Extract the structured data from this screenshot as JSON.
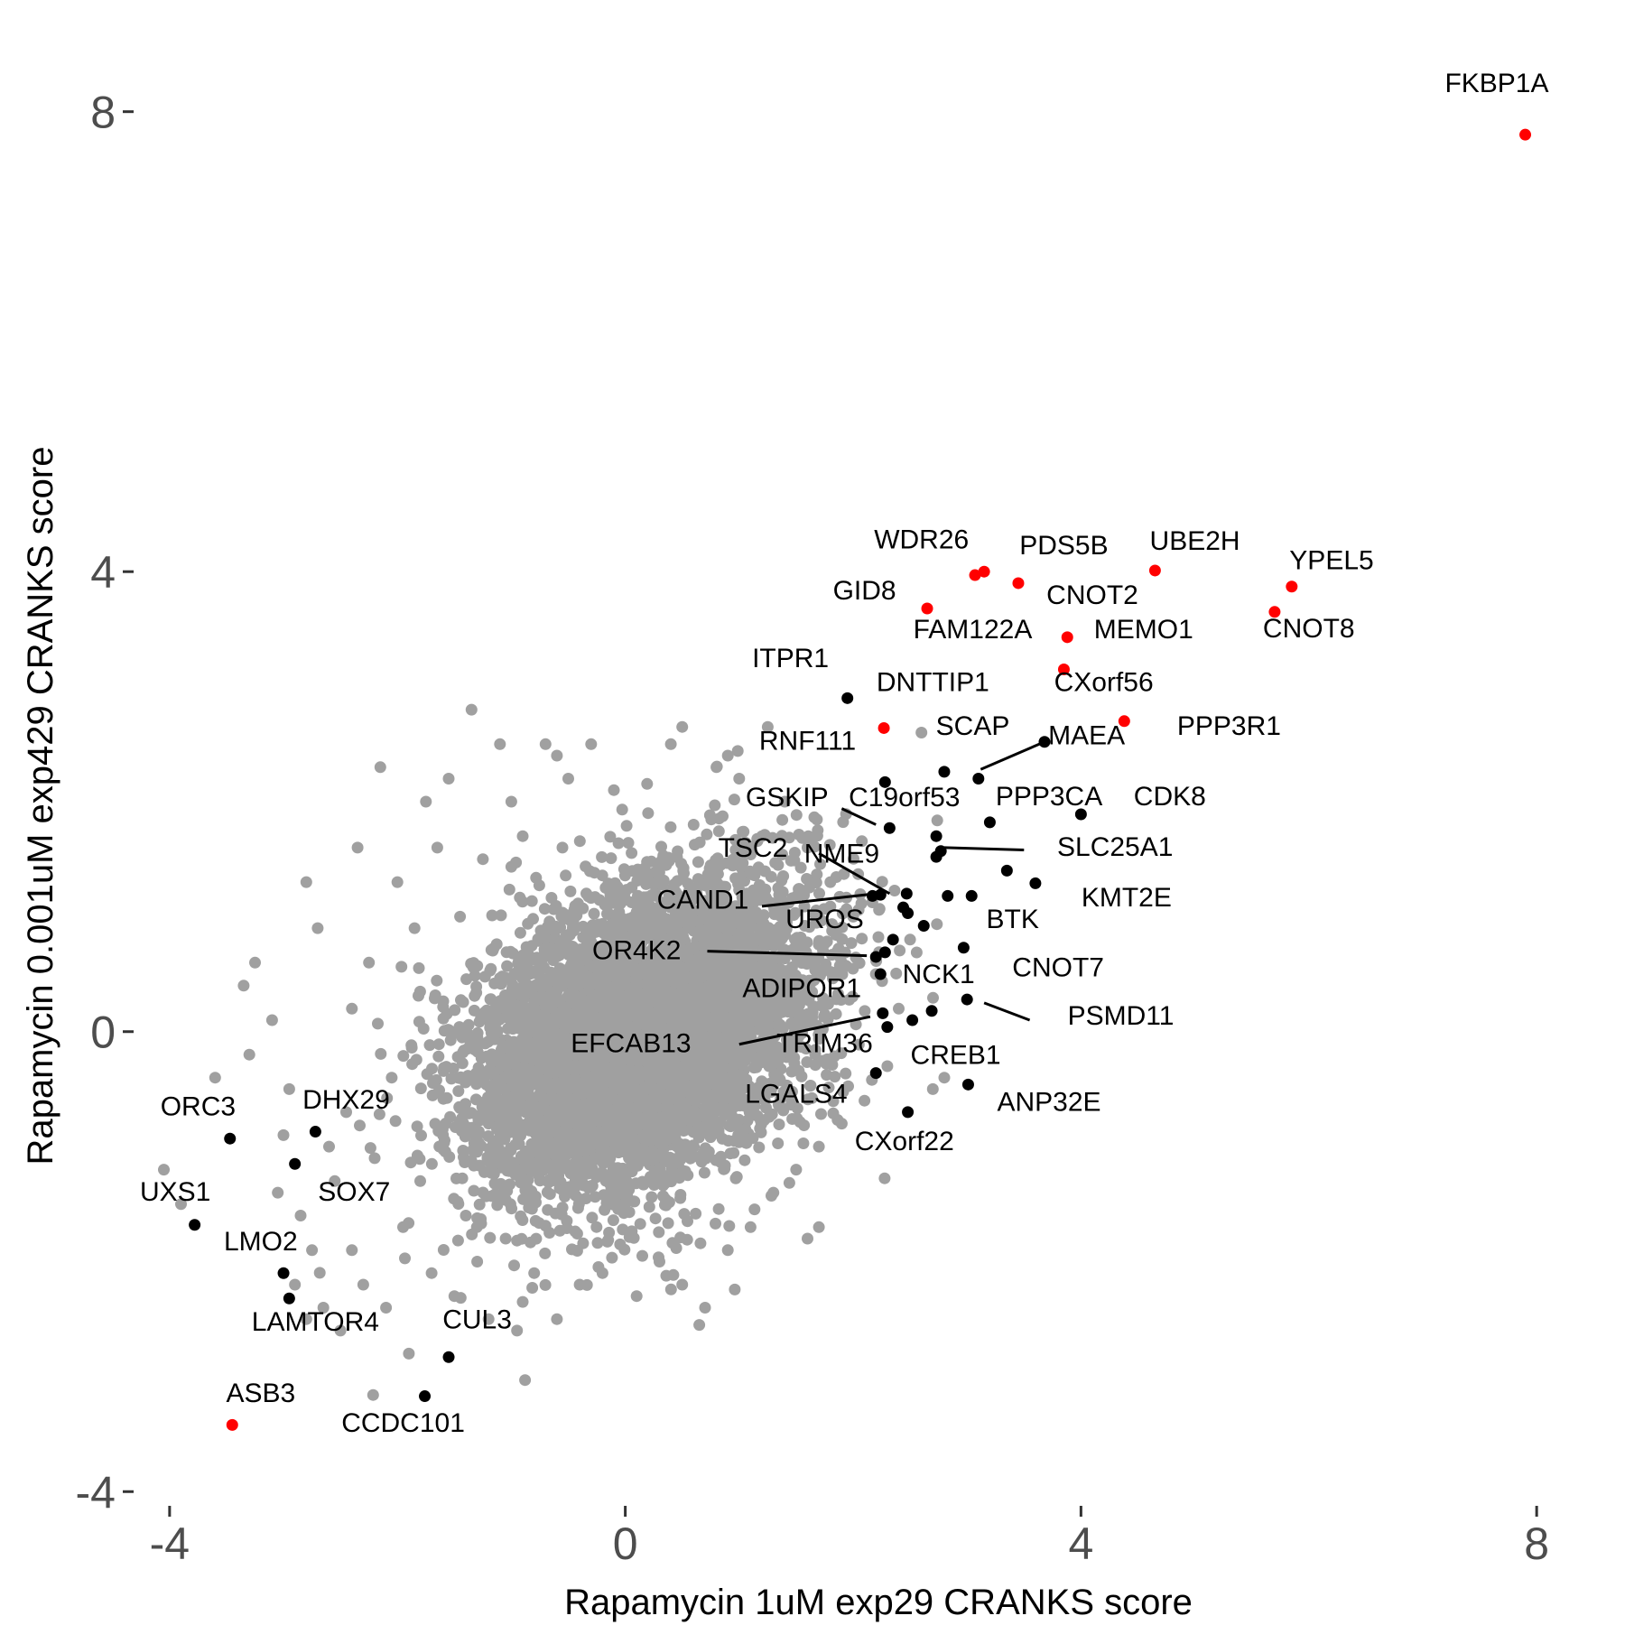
{
  "chart_data": {
    "type": "scatter",
    "title": "",
    "xlabel": "Rapamycin 1uM exp29 CRANKS score",
    "ylabel": "Rapamycin 0.001uM exp429 CRANKS score",
    "xlim": [
      -4.3,
      8.3
    ],
    "ylim": [
      -4.1,
      8.5
    ],
    "x_ticks": [
      -4,
      0,
      4,
      8
    ],
    "y_ticks": [
      -4,
      0,
      4,
      8
    ],
    "x_tick_labels": [
      "-4",
      "0",
      "4",
      "8"
    ],
    "y_tick_labels": [
      "-4",
      "0",
      "4",
      "8"
    ],
    "grid": false,
    "legend": "none",
    "colors": {
      "background": "#ffffff",
      "red": "#ff0000",
      "black": "#000000",
      "gray": "#a0a0a0"
    },
    "background_points": {
      "color": "gray",
      "note_count": 6000,
      "outliers": [
        [
          -4.05,
          -1.2
        ],
        [
          -3.9,
          -1.5
        ],
        [
          -3.6,
          -0.4
        ],
        [
          -3.35,
          0.4
        ],
        [
          -3.3,
          -0.2
        ],
        [
          -3.25,
          0.6
        ],
        [
          -3.1,
          0.1
        ],
        [
          -3.05,
          -1.4
        ],
        [
          -3.0,
          -0.9
        ],
        [
          -2.95,
          -0.5
        ],
        [
          -2.9,
          -2.2
        ],
        [
          -2.85,
          -1.6
        ],
        [
          -2.8,
          -2.5
        ],
        [
          -2.8,
          1.3
        ],
        [
          -2.75,
          -1.9
        ],
        [
          -2.7,
          0.9
        ],
        [
          -2.65,
          -2.4
        ],
        [
          -2.6,
          -1.0
        ],
        [
          -2.55,
          -1.3
        ],
        [
          -2.5,
          -2.6
        ],
        [
          -2.45,
          -0.7
        ],
        [
          -2.4,
          0.2
        ],
        [
          -2.4,
          -1.9
        ],
        [
          -2.35,
          1.6
        ],
        [
          -2.3,
          -2.2
        ],
        [
          -2.25,
          0.6
        ],
        [
          -2.2,
          -1.1
        ],
        [
          -2.15,
          2.3
        ],
        [
          -2.1,
          -2.4
        ],
        [
          -2.05,
          -0.4
        ],
        [
          -2.0,
          1.3
        ],
        [
          -1.95,
          -1.7
        ],
        [
          -1.9,
          -2.8
        ],
        [
          -1.85,
          0.9
        ],
        [
          -1.8,
          -1.3
        ],
        [
          -1.75,
          2.0
        ],
        [
          -1.7,
          -2.1
        ],
        [
          -1.65,
          1.6
        ],
        [
          -1.6,
          -0.9
        ],
        [
          -1.55,
          2.2
        ],
        [
          -1.5,
          -2.3
        ],
        [
          -1.45,
          1.0
        ],
        [
          -1.4,
          -1.6
        ],
        [
          -1.35,
          2.8
        ],
        [
          -1.3,
          -2.0
        ],
        [
          -1.25,
          1.5
        ],
        [
          -1.2,
          -2.5
        ],
        [
          -1.1,
          2.5
        ],
        [
          -1.05,
          -1.8
        ],
        [
          -1.0,
          2.0
        ],
        [
          -0.95,
          -2.6
        ],
        [
          -0.9,
          1.7
        ],
        [
          -0.8,
          -2.1
        ],
        [
          -0.6,
          2.4
        ],
        [
          -0.6,
          -2.5
        ],
        [
          -0.5,
          2.2
        ],
        [
          -0.4,
          -2.2
        ],
        [
          -0.3,
          2.5
        ],
        [
          -0.2,
          -2.1
        ],
        [
          -0.1,
          2.1
        ],
        [
          0.1,
          -2.3
        ],
        [
          0.2,
          1.9
        ],
        [
          0.3,
          -2.0
        ],
        [
          0.4,
          2.5
        ],
        [
          0.5,
          -2.2
        ],
        [
          0.6,
          1.8
        ],
        [
          0.7,
          -2.4
        ],
        [
          0.8,
          2.3
        ],
        [
          0.9,
          -1.9
        ],
        [
          1.0,
          2.2
        ],
        [
          1.1,
          -1.7
        ],
        [
          1.2,
          1.7
        ],
        [
          1.3,
          -1.4
        ],
        [
          1.4,
          2.0
        ],
        [
          1.5,
          -1.2
        ],
        [
          1.6,
          1.6
        ],
        [
          1.7,
          -1.0
        ],
        [
          1.8,
          1.3
        ],
        [
          1.9,
          -0.8
        ],
        [
          2.0,
          1.0
        ],
        [
          2.1,
          -0.6
        ],
        [
          2.2,
          0.5
        ],
        [
          2.3,
          -0.3
        ],
        [
          2.4,
          0.2
        ],
        [
          2.5,
          0.8
        ],
        [
          2.6,
          2.6
        ],
        [
          2.7,
          -0.5
        ],
        [
          2.8,
          -0.4
        ],
        [
          1.6,
          -1.8
        ],
        [
          0.65,
          -2.55
        ],
        [
          0.15,
          -1.95
        ],
        [
          -0.9,
          -2.35
        ],
        [
          1.25,
          2.65
        ],
        [
          0.5,
          2.65
        ],
        [
          -0.7,
          2.5
        ],
        [
          0.9,
          2.4
        ],
        [
          1.7,
          -1.7
        ]
      ],
      "ellipse": {
        "cx": 0.15,
        "cy": -0.05,
        "rx": 1.45,
        "ry": 1.35,
        "rotation": -40
      },
      "random_seed": 7
    },
    "highlighted_points": [
      {
        "label": "FKBP1A",
        "x": 7.9,
        "y": 7.8,
        "color": "red"
      },
      {
        "label": "YPEL5",
        "x": 5.85,
        "y": 3.87,
        "color": "red"
      },
      {
        "label": "CNOT8",
        "x": 5.7,
        "y": 3.65,
        "color": "red"
      },
      {
        "label": "UBE2H",
        "x": 4.65,
        "y": 4.01,
        "color": "red"
      },
      {
        "label": "PDS5B",
        "x": 3.15,
        "y": 4.0,
        "color": "red"
      },
      {
        "label": "WDR26",
        "x": 3.07,
        "y": 3.97,
        "color": "red"
      },
      {
        "label": "CNOT2",
        "x": 3.45,
        "y": 3.9,
        "color": "red"
      },
      {
        "label": "GID8",
        "x": 2.65,
        "y": 3.68,
        "color": "red"
      },
      {
        "label": "FAM122A",
        "x": 3.88,
        "y": 3.43,
        "color": "red"
      },
      {
        "label": "MEMO1",
        "x": 3.85,
        "y": 3.15,
        "color": "red"
      },
      {
        "label": "CXorf56",
        "x": 4.38,
        "y": 2.7,
        "color": "red"
      },
      {
        "label": "DNTTIP1",
        "x": 2.27,
        "y": 2.64,
        "color": "red"
      },
      {
        "label": "ASB3",
        "x": -3.45,
        "y": -3.42,
        "color": "red"
      },
      {
        "label": "ITPR1",
        "x": 1.95,
        "y": 2.9,
        "color": "black"
      },
      {
        "label": "MAEA",
        "x": 3.68,
        "y": 2.52,
        "color": "black"
      },
      {
        "label": "SCAP",
        "x": 2.8,
        "y": 2.26,
        "color": "black"
      },
      {
        "label": "RNF111",
        "x": 2.28,
        "y": 2.17,
        "color": "black"
      },
      {
        "label": "PPP3R1",
        "x": 3.1,
        "y": 2.2,
        "color": "black"
      },
      {
        "label": "PPP3CA",
        "x": 3.2,
        "y": 1.82,
        "color": "black"
      },
      {
        "label": "CDK8",
        "x": 4.0,
        "y": 1.89,
        "color": "black"
      },
      {
        "label": "C19orf53",
        "x": 2.32,
        "y": 1.77,
        "color": "black"
      },
      {
        "label": "GSKIP",
        "x": 2.73,
        "y": 1.7,
        "color": "black"
      },
      {
        "label": "SLC25A1",
        "x": 2.77,
        "y": 1.57,
        "color": "black"
      },
      {
        "label": "SLC25A1_b",
        "x": 2.73,
        "y": 1.52,
        "color": "black"
      },
      {
        "label": "SLC25A1_c",
        "x": 3.35,
        "y": 1.4,
        "color": "black"
      },
      {
        "label": "KMT2E",
        "x": 3.6,
        "y": 1.29,
        "color": "black"
      },
      {
        "label": "TSC2",
        "x": 2.24,
        "y": 1.19,
        "color": "black"
      },
      {
        "label": "NME9",
        "x": 2.47,
        "y": 1.2,
        "color": "black"
      },
      {
        "label": "CAND1",
        "x": 2.17,
        "y": 1.18,
        "color": "black"
      },
      {
        "label": "NME9_b",
        "x": 2.83,
        "y": 1.18,
        "color": "black"
      },
      {
        "label": "NME9_c",
        "x": 3.04,
        "y": 1.18,
        "color": "black"
      },
      {
        "label": "UROS",
        "x": 2.44,
        "y": 1.08,
        "color": "black"
      },
      {
        "label": "UROS_b",
        "x": 2.48,
        "y": 1.03,
        "color": "black"
      },
      {
        "label": "BTK",
        "x": 2.62,
        "y": 0.92,
        "color": "black"
      },
      {
        "label": "BTK_b",
        "x": 2.35,
        "y": 0.8,
        "color": "black"
      },
      {
        "label": "CNOT7",
        "x": 2.97,
        "y": 0.73,
        "color": "black"
      },
      {
        "label": "OR4K2",
        "x": 2.2,
        "y": 0.65,
        "color": "black"
      },
      {
        "label": "OR4K2_b",
        "x": 2.28,
        "y": 0.69,
        "color": "black"
      },
      {
        "label": "NCK1",
        "x": 2.24,
        "y": 0.5,
        "color": "black"
      },
      {
        "label": "ADIPOR1",
        "x": 3.0,
        "y": 0.28,
        "color": "black"
      },
      {
        "label": "PSMD11",
        "x": 2.26,
        "y": 0.16,
        "color": "black"
      },
      {
        "label": "EFCAB13",
        "x": 2.69,
        "y": 0.18,
        "color": "black"
      },
      {
        "label": "TRIM36",
        "x": 2.52,
        "y": 0.1,
        "color": "black"
      },
      {
        "label": "TRIM36_b",
        "x": 2.3,
        "y": 0.04,
        "color": "black"
      },
      {
        "label": "CREB1",
        "x": 2.2,
        "y": -0.36,
        "color": "black"
      },
      {
        "label": "ANP32E",
        "x": 3.01,
        "y": -0.46,
        "color": "black"
      },
      {
        "label": "LGALS4",
        "x": 2.48,
        "y": -0.7,
        "color": "black"
      },
      {
        "label": "ORC3",
        "x": -3.47,
        "y": -0.93,
        "color": "black"
      },
      {
        "label": "DHX29",
        "x": -2.72,
        "y": -0.87,
        "color": "black"
      },
      {
        "label": "SOX7",
        "x": -2.9,
        "y": -1.15,
        "color": "black"
      },
      {
        "label": "UXS1",
        "x": -3.78,
        "y": -1.68,
        "color": "black"
      },
      {
        "label": "LMO2",
        "x": -3.0,
        "y": -2.1,
        "color": "black"
      },
      {
        "label": "LAMTOR4",
        "x": -2.95,
        "y": -2.32,
        "color": "black"
      },
      {
        "label": "CUL3",
        "x": -1.55,
        "y": -2.83,
        "color": "black"
      },
      {
        "label": "CCDC101",
        "x": -1.76,
        "y": -3.17,
        "color": "black"
      }
    ],
    "annotations": [
      {
        "text": "FKBP1A",
        "x": 7.65,
        "y": 8.17,
        "anchor": "middle"
      },
      {
        "text": "YPEL5",
        "x": 6.2,
        "y": 4.02,
        "anchor": "middle"
      },
      {
        "text": "CNOT8",
        "x": 6.0,
        "y": 3.43,
        "anchor": "middle"
      },
      {
        "text": "UBE2H",
        "x": 5.0,
        "y": 4.19,
        "anchor": "middle"
      },
      {
        "text": "PDS5B",
        "x": 3.85,
        "y": 4.15,
        "anchor": "middle"
      },
      {
        "text": "WDR26",
        "x": 2.6,
        "y": 4.2,
        "anchor": "middle"
      },
      {
        "text": "CNOT2",
        "x": 4.1,
        "y": 3.72,
        "anchor": "middle"
      },
      {
        "text": "GID8",
        "x": 2.1,
        "y": 3.76,
        "anchor": "middle"
      },
      {
        "text": "FAM122A",
        "x": 3.05,
        "y": 3.42,
        "anchor": "middle"
      },
      {
        "text": "MEMO1",
        "x": 4.55,
        "y": 3.42,
        "anchor": "middle"
      },
      {
        "text": "ITPR1",
        "x": 1.45,
        "y": 3.17,
        "anchor": "middle"
      },
      {
        "text": "DNTTIP1",
        "x": 2.7,
        "y": 2.96,
        "anchor": "middle"
      },
      {
        "text": "CXorf56",
        "x": 4.2,
        "y": 2.96,
        "anchor": "middle"
      },
      {
        "text": "SCAP",
        "x": 3.05,
        "y": 2.58,
        "anchor": "middle"
      },
      {
        "text": "MAEA",
        "x": 4.05,
        "y": 2.5,
        "anchor": "middle"
      },
      {
        "text": "PPP3R1",
        "x": 5.3,
        "y": 2.58,
        "anchor": "middle"
      },
      {
        "text": "RNF111",
        "x": 1.6,
        "y": 2.45,
        "anchor": "middle"
      },
      {
        "text": "GSKIP",
        "x": 1.42,
        "y": 1.96,
        "anchor": "middle"
      },
      {
        "text": "C19orf53",
        "x": 2.45,
        "y": 1.96,
        "anchor": "middle"
      },
      {
        "text": "PPP3CA",
        "x": 3.72,
        "y": 1.97,
        "anchor": "middle"
      },
      {
        "text": "CDK8",
        "x": 4.78,
        "y": 1.97,
        "anchor": "middle"
      },
      {
        "text": "TSC2",
        "x": 1.12,
        "y": 1.52,
        "anchor": "middle"
      },
      {
        "text": "NME9",
        "x": 1.9,
        "y": 1.47,
        "anchor": "middle"
      },
      {
        "text": "SLC25A1",
        "x": 4.3,
        "y": 1.53,
        "anchor": "middle"
      },
      {
        "text": "CAND1",
        "x": 0.68,
        "y": 1.07,
        "anchor": "middle"
      },
      {
        "text": "KMT2E",
        "x": 4.4,
        "y": 1.09,
        "anchor": "middle"
      },
      {
        "text": "UROS",
        "x": 1.75,
        "y": 0.9,
        "anchor": "middle"
      },
      {
        "text": "BTK",
        "x": 3.4,
        "y": 0.9,
        "anchor": "middle"
      },
      {
        "text": "OR4K2",
        "x": 0.1,
        "y": 0.63,
        "anchor": "middle"
      },
      {
        "text": "CNOT7",
        "x": 3.8,
        "y": 0.48,
        "anchor": "middle"
      },
      {
        "text": "NCK1",
        "x": 2.75,
        "y": 0.42,
        "anchor": "middle"
      },
      {
        "text": "ADIPOR1",
        "x": 1.55,
        "y": 0.3,
        "anchor": "middle"
      },
      {
        "text": "PSMD11",
        "x": 4.35,
        "y": 0.06,
        "anchor": "middle"
      },
      {
        "text": "EFCAB13",
        "x": 0.05,
        "y": -0.18,
        "anchor": "middle"
      },
      {
        "text": "TRIM36",
        "x": 1.75,
        "y": -0.18,
        "anchor": "middle"
      },
      {
        "text": "CREB1",
        "x": 2.9,
        "y": -0.28,
        "anchor": "middle"
      },
      {
        "text": "ANP32E",
        "x": 3.72,
        "y": -0.69,
        "anchor": "middle"
      },
      {
        "text": "LGALS4",
        "x": 1.5,
        "y": -0.62,
        "anchor": "middle"
      },
      {
        "text": "CXorf22",
        "x": 2.45,
        "y": -1.03,
        "anchor": "middle"
      },
      {
        "text": "ORC3",
        "x": -3.75,
        "y": -0.73,
        "anchor": "middle"
      },
      {
        "text": "DHX29",
        "x": -2.45,
        "y": -0.67,
        "anchor": "middle"
      },
      {
        "text": "UXS1",
        "x": -3.95,
        "y": -1.47,
        "anchor": "middle"
      },
      {
        "text": "SOX7",
        "x": -2.38,
        "y": -1.47,
        "anchor": "middle"
      },
      {
        "text": "LMO2",
        "x": -3.2,
        "y": -1.9,
        "anchor": "middle"
      },
      {
        "text": "LAMTOR4",
        "x": -2.72,
        "y": -2.6,
        "anchor": "middle"
      },
      {
        "text": "CUL3",
        "x": -1.3,
        "y": -2.58,
        "anchor": "middle"
      },
      {
        "text": "ASB3",
        "x": -3.2,
        "y": -3.22,
        "anchor": "middle"
      },
      {
        "text": "CCDC101",
        "x": -1.95,
        "y": -3.48,
        "anchor": "middle"
      }
    ],
    "leader_lines": [
      [
        3.68,
        2.52,
        3.12,
        2.28
      ],
      [
        2.2,
        1.8,
        1.9,
        1.94
      ],
      [
        2.32,
        1.2,
        1.7,
        1.55
      ],
      [
        2.2,
        1.2,
        1.2,
        1.09
      ],
      [
        3.5,
        1.58,
        2.8,
        1.6
      ],
      [
        2.12,
        0.66,
        0.72,
        0.7
      ],
      [
        2.15,
        0.13,
        1.0,
        -0.11
      ],
      [
        3.55,
        0.1,
        3.15,
        0.25
      ]
    ]
  }
}
